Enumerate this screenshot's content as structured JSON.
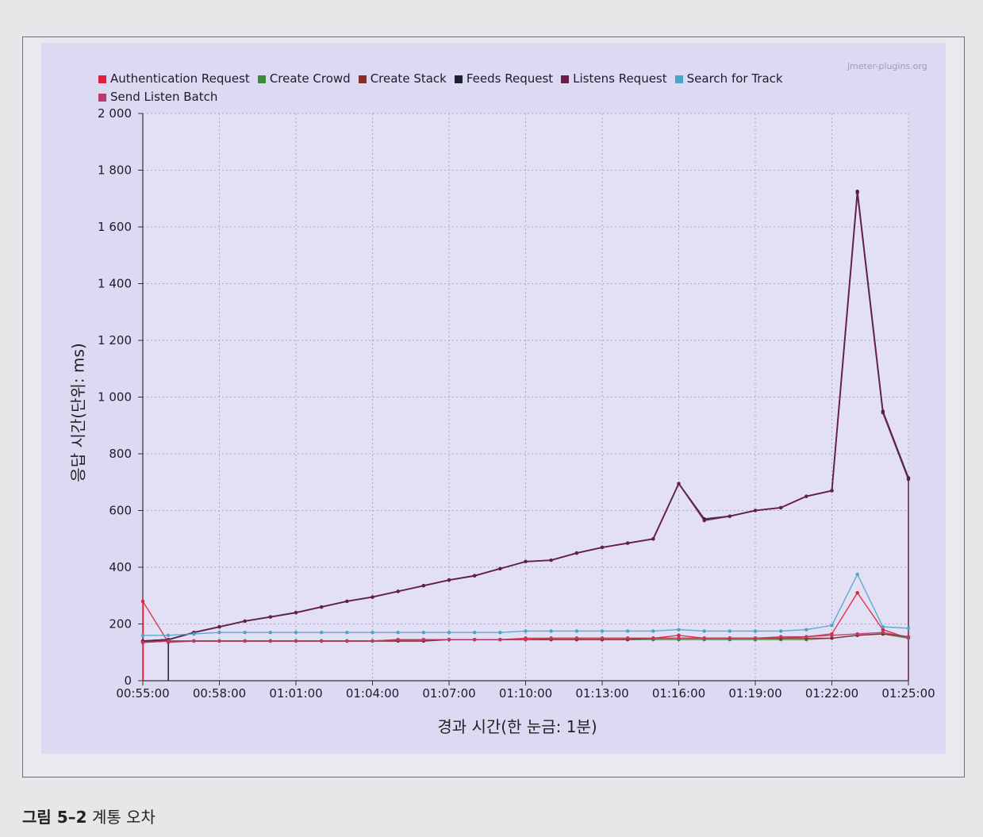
{
  "caption": {
    "figure_label": "그림 5–2",
    "text": "계통 오차"
  },
  "watermark": "jmeter-plugins.org",
  "chart_data": {
    "type": "line",
    "title": "",
    "xlabel": "경과 시간(한 눈금: 1분)",
    "ylabel": "응답 시간(단위: ms)",
    "ylim": [
      0,
      2000
    ],
    "yticks": [
      0,
      200,
      400,
      600,
      800,
      1000,
      1200,
      1400,
      1600,
      1800,
      2000
    ],
    "ytick_labels": [
      "0",
      "200",
      "400",
      "600",
      "800",
      "1 000",
      "1 200",
      "1 400",
      "1 600",
      "1 800",
      "2 000"
    ],
    "xlim": [
      "00:55:00",
      "01:25:00"
    ],
    "xtick_labels": [
      "00:55:00",
      "00:58:00",
      "01:01:00",
      "01:04:00",
      "01:07:00",
      "01:10:00",
      "01:13:00",
      "01:16:00",
      "01:19:00",
      "01:22:00",
      "01:25:00"
    ],
    "grid": true,
    "legend_position": "top-left",
    "x": [
      "00:55:00",
      "00:56:00",
      "00:57:00",
      "00:58:00",
      "00:59:00",
      "01:00:00",
      "01:01:00",
      "01:02:00",
      "01:03:00",
      "01:04:00",
      "01:05:00",
      "01:06:00",
      "01:07:00",
      "01:08:00",
      "01:09:00",
      "01:10:00",
      "01:11:00",
      "01:12:00",
      "01:13:00",
      "01:14:00",
      "01:15:00",
      "01:16:00",
      "01:17:00",
      "01:18:00",
      "01:19:00",
      "01:20:00",
      "01:21:00",
      "01:22:00",
      "01:23:00",
      "01:24:00",
      "01:25:00"
    ],
    "series": [
      {
        "name": "Authentication Request",
        "color": "#e0203c",
        "values": [
          280,
          135,
          140,
          140,
          140,
          140,
          140,
          140,
          140,
          140,
          145,
          145,
          145,
          145,
          145,
          150,
          150,
          150,
          150,
          150,
          150,
          160,
          150,
          150,
          150,
          150,
          155,
          165,
          310,
          180,
          150
        ]
      },
      {
        "name": "Create Crowd",
        "color": "#3f8a3a",
        "values": [
          135,
          140,
          140,
          140,
          140,
          140,
          140,
          140,
          140,
          140,
          140,
          140,
          145,
          145,
          145,
          145,
          145,
          145,
          145,
          145,
          145,
          145,
          145,
          145,
          145,
          145,
          145,
          150,
          160,
          165,
          150
        ]
      },
      {
        "name": "Create Stack",
        "color": "#8a2a2a",
        "values": [
          135,
          140,
          140,
          140,
          140,
          140,
          140,
          140,
          140,
          140,
          140,
          140,
          145,
          145,
          145,
          145,
          145,
          145,
          145,
          145,
          150,
          150,
          150,
          150,
          150,
          150,
          150,
          150,
          160,
          165,
          155
        ]
      },
      {
        "name": "Feeds Request",
        "color": "#1f1f33",
        "values": [
          140,
          145,
          170,
          190,
          210,
          225,
          240,
          260,
          280,
          295,
          315,
          335,
          355,
          370,
          395,
          420,
          425,
          450,
          470,
          485,
          500,
          695,
          570,
          580,
          600,
          610,
          650,
          670,
          1725,
          950,
          715
        ]
      },
      {
        "name": "Listens Request",
        "color": "#6b1d4a",
        "values": [
          140,
          145,
          170,
          190,
          210,
          225,
          240,
          260,
          280,
          295,
          315,
          335,
          355,
          370,
          395,
          420,
          425,
          450,
          470,
          485,
          500,
          695,
          565,
          580,
          600,
          610,
          650,
          670,
          1720,
          945,
          710
        ]
      },
      {
        "name": "Search for Track",
        "color": "#4aa6c8",
        "values": [
          160,
          160,
          165,
          170,
          170,
          170,
          170,
          170,
          170,
          170,
          170,
          170,
          170,
          170,
          170,
          175,
          175,
          175,
          175,
          175,
          175,
          180,
          175,
          175,
          175,
          175,
          180,
          195,
          375,
          190,
          185
        ]
      },
      {
        "name": "Send Listen Batch",
        "color": "#b83a6e",
        "values": [
          135,
          140,
          140,
          140,
          140,
          140,
          140,
          140,
          140,
          140,
          145,
          145,
          145,
          145,
          145,
          145,
          150,
          150,
          150,
          150,
          150,
          150,
          150,
          150,
          150,
          155,
          155,
          160,
          165,
          170,
          155
        ]
      }
    ]
  }
}
